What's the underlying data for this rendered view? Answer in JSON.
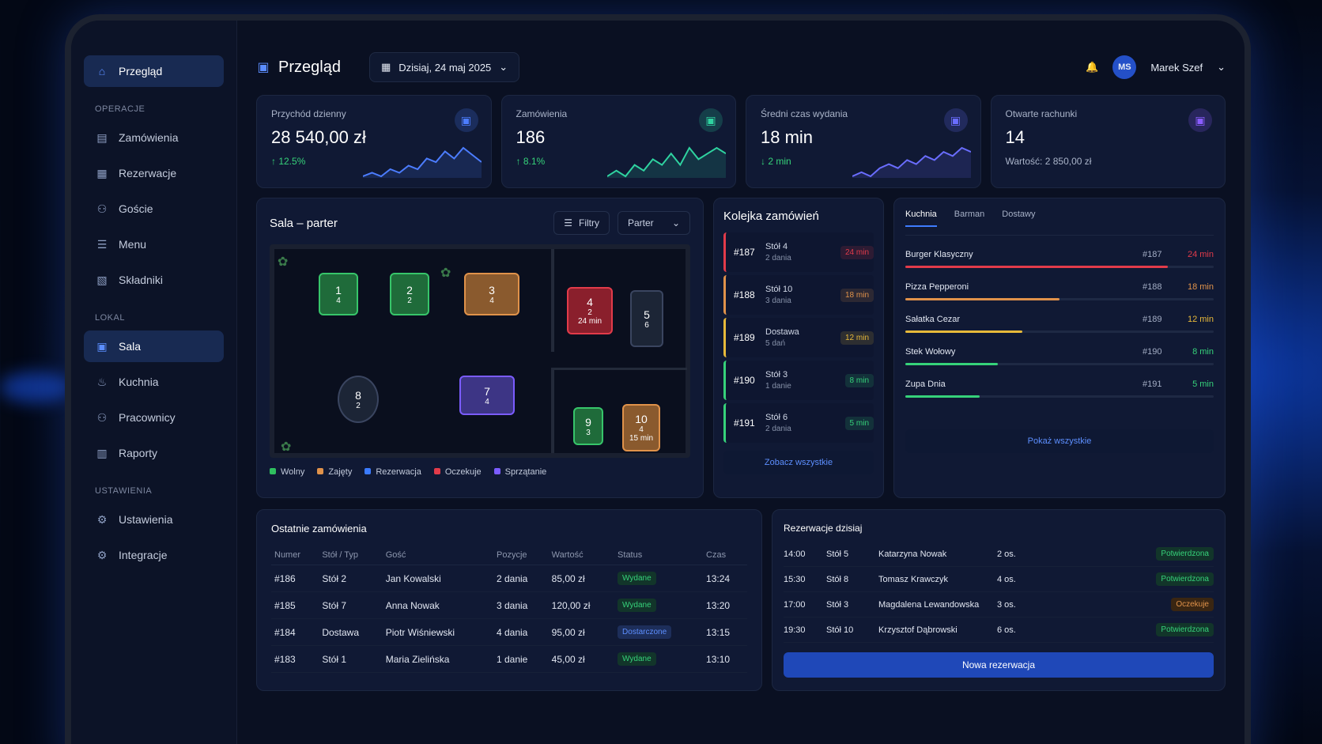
{
  "sidebar": {
    "top": {
      "label": "Przegląd",
      "icon": "home-icon"
    },
    "sections": [
      {
        "label": "OPERACJE",
        "items": [
          {
            "label": "Zamówienia",
            "icon": "orders-icon"
          },
          {
            "label": "Rezerwacje",
            "icon": "calendar-icon"
          },
          {
            "label": "Goście",
            "icon": "users-icon"
          },
          {
            "label": "Menu",
            "icon": "menu-icon"
          },
          {
            "label": "Składniki",
            "icon": "ingredients-icon"
          }
        ]
      },
      {
        "label": "LOKAL",
        "items": [
          {
            "label": "Sala",
            "icon": "floor-icon",
            "active": true
          },
          {
            "label": "Kuchnia",
            "icon": "kitchen-icon"
          },
          {
            "label": "Pracownicy",
            "icon": "staff-icon"
          },
          {
            "label": "Raporty",
            "icon": "reports-icon"
          }
        ]
      },
      {
        "label": "USTAWIENIA",
        "items": [
          {
            "label": "Ustawienia",
            "icon": "gear-icon"
          },
          {
            "label": "Integracje",
            "icon": "integrations-icon"
          }
        ]
      }
    ]
  },
  "header": {
    "title": "Przegląd",
    "date": "Dzisiaj, 24 maj 2025",
    "user_initials": "MS",
    "user_name": "Marek Szef"
  },
  "kpis": [
    {
      "title": "Przychód dzienny",
      "value": "28 540,00 zł",
      "delta": "↑ 12.5%",
      "delta_color": "#36d27a",
      "color": "#4c7dff",
      "spark": [
        6,
        7,
        6,
        8,
        7,
        9,
        8,
        11,
        10,
        13,
        11,
        14,
        12,
        10
      ]
    },
    {
      "title": "Zamówienia",
      "value": "186",
      "delta": "↑ 8.1%",
      "delta_color": "#36d27a",
      "color": "#2fd3a0",
      "spark": [
        5,
        6,
        5,
        7,
        6,
        8,
        7,
        9,
        7,
        10,
        8,
        9,
        10,
        9
      ]
    },
    {
      "title": "Średni czas wydania",
      "value": "18 min",
      "delta": "↓ 2 min",
      "delta_color": "#36d27a",
      "color": "#6a6dff",
      "spark": [
        4,
        5,
        4,
        6,
        7,
        6,
        8,
        7,
        9,
        8,
        10,
        9,
        11,
        10
      ]
    },
    {
      "title": "Otwarte rachunki",
      "value": "14",
      "delta": "Wartość: 2 850,00 zł",
      "delta_color": "#aab4c9",
      "color": "#8a5cff",
      "spark": []
    }
  ],
  "floor": {
    "title": "Sala – parter",
    "filter_label": "Filtry",
    "level": "Parter",
    "tables": [
      {
        "num": "1",
        "seats": "4",
        "status": "free"
      },
      {
        "num": "2",
        "seats": "2",
        "status": "free"
      },
      {
        "num": "3",
        "seats": "4",
        "status": "busy"
      },
      {
        "num": "4",
        "seats": "2",
        "status": "waiting",
        "time": "24 min"
      },
      {
        "num": "5",
        "seats": "6",
        "status": "neutral"
      },
      {
        "num": "7",
        "seats": "4",
        "status": "cleaning"
      },
      {
        "num": "8",
        "seats": "2",
        "status": "neutral"
      },
      {
        "num": "9",
        "seats": "3",
        "status": "free"
      },
      {
        "num": "10",
        "seats": "4",
        "status": "busy",
        "time": "15 min"
      }
    ],
    "legend": [
      {
        "label": "Wolny",
        "color": "#2fbf5f"
      },
      {
        "label": "Zajęty",
        "color": "#e0924a"
      },
      {
        "label": "Rezerwacja",
        "color": "#3b7bff"
      },
      {
        "label": "Oczekuje",
        "color": "#e23b4a"
      },
      {
        "label": "Sprzątanie",
        "color": "#7b5cff"
      }
    ]
  },
  "queue": {
    "title": "Kolejka zamówień",
    "items": [
      {
        "num": "#187",
        "where": "Stół 4",
        "dishes": "2 dania",
        "time": "24 min",
        "color": "#e23b4a"
      },
      {
        "num": "#188",
        "where": "Stół 10",
        "dishes": "3 dania",
        "time": "18 min",
        "color": "#e0924a"
      },
      {
        "num": "#189",
        "where": "Dostawa",
        "dishes": "5 dań",
        "time": "12 min",
        "color": "#e7b93a"
      },
      {
        "num": "#190",
        "where": "Stół 3",
        "dishes": "1 danie",
        "time": "8 min",
        "color": "#36d27a"
      },
      {
        "num": "#191",
        "where": "Stół 6",
        "dishes": "2 dania",
        "time": "5 min",
        "color": "#36d27a"
      }
    ],
    "see_all": "Zobacz wszystkie"
  },
  "kitchen": {
    "tabs": [
      "Kuchnia",
      "Barman",
      "Dostawy"
    ],
    "items": [
      {
        "name": "Burger Klasyczny",
        "id": "#187",
        "time": "24 min",
        "progress": 0.85,
        "color": "#e23b4a"
      },
      {
        "name": "Pizza Pepperoni",
        "id": "#188",
        "time": "18 min",
        "progress": 0.5,
        "color": "#e0924a"
      },
      {
        "name": "Sałatka Cezar",
        "id": "#189",
        "time": "12 min",
        "progress": 0.38,
        "color": "#e7b93a"
      },
      {
        "name": "Stek Wołowy",
        "id": "#190",
        "time": "8 min",
        "progress": 0.3,
        "color": "#36d27a"
      },
      {
        "name": "Zupa Dnia",
        "id": "#191",
        "time": "5 min",
        "progress": 0.24,
        "color": "#36d27a"
      }
    ],
    "show_all": "Pokaż wszystkie"
  },
  "orders": {
    "title": "Ostatnie zamówienia",
    "columns": [
      "Numer",
      "Stół / Typ",
      "Gość",
      "Pozycje",
      "Wartość",
      "Status",
      "Czas"
    ],
    "rows": [
      [
        "#186",
        "Stół 2",
        "Jan Kowalski",
        "2 dania",
        "85,00 zł",
        "Wydane",
        "13:24"
      ],
      [
        "#185",
        "Stół 7",
        "Anna Nowak",
        "3 dania",
        "120,00 zł",
        "Wydane",
        "13:20"
      ],
      [
        "#184",
        "Dostawa",
        "Piotr Wiśniewski",
        "4 dania",
        "95,00 zł",
        "Dostarczone",
        "13:15"
      ],
      [
        "#183",
        "Stół 1",
        "Maria Zielińska",
        "1 danie",
        "45,00 zł",
        "Wydane",
        "13:10"
      ]
    ]
  },
  "reservations": {
    "title": "Rezerwacje dzisiaj",
    "rows": [
      {
        "time": "14:00",
        "table": "Stół 5",
        "name": "Katarzyna Nowak",
        "people": "2 os.",
        "status": "Potwierdzona"
      },
      {
        "time": "15:30",
        "table": "Stół 8",
        "name": "Tomasz Krawczyk",
        "people": "4 os.",
        "status": "Potwierdzona"
      },
      {
        "time": "17:00",
        "table": "Stół 3",
        "name": "Magdalena Lewandowska",
        "people": "3 os.",
        "status": "Oczekuje"
      },
      {
        "time": "19:30",
        "table": "Stół 10",
        "name": "Krzysztof Dąbrowski",
        "people": "6 os.",
        "status": "Potwierdzona"
      }
    ],
    "new_button": "Nowa rezerwacja"
  }
}
